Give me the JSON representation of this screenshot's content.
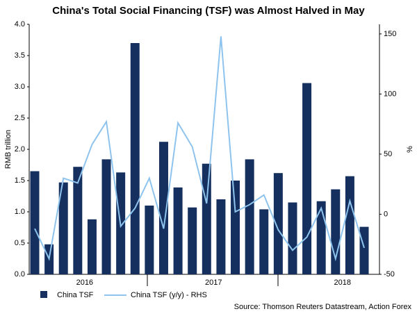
{
  "chart_data": {
    "type": "bar",
    "title": "China's Total Social Financing (TSF) was Almost Halved in May",
    "y_label": "RMB trillion",
    "y2_label": "%",
    "source": "Source: Thomson Reuters Datastream, Action Forex",
    "categories": [
      null,
      null,
      null,
      "2016",
      null,
      null,
      null,
      null,
      null,
      null,
      null,
      null,
      "2017",
      null,
      null,
      null,
      null,
      null,
      null,
      null,
      null,
      "2018",
      null,
      null
    ],
    "series": [
      {
        "name": "China TSF",
        "type": "bar",
        "color": "#15305e",
        "values": [
          1.65,
          0.48,
          1.47,
          1.72,
          0.88,
          1.84,
          1.63,
          3.7,
          1.1,
          2.12,
          1.39,
          1.07,
          1.77,
          1.2,
          1.5,
          1.84,
          1.04,
          1.62,
          1.15,
          3.06,
          1.17,
          1.36,
          1.57,
          0.76
        ]
      },
      {
        "name": "China TSF (y/y) - RHS",
        "type": "line",
        "axis": "y2",
        "color": "#8ec3ee",
        "values": [
          -12,
          -37,
          30,
          26,
          58,
          77,
          -10,
          5,
          30,
          -12,
          76,
          56,
          9,
          148,
          2,
          8,
          16,
          -13,
          -30,
          -19,
          5,
          -37,
          11,
          -28
        ]
      }
    ],
    "ylim": [
      0,
      4
    ],
    "yticks": [
      {
        "value": 0,
        "label": "0.0"
      },
      0.5,
      {
        "value": 1,
        "label": "1.0"
      },
      1.5,
      {
        "value": 2,
        "label": "2.0"
      },
      2.5,
      {
        "value": 3,
        "label": "3.0"
      },
      3.5,
      {
        "value": 4,
        "label": "4.0"
      }
    ],
    "y2lim": [
      -50,
      158
    ],
    "y2ticks": [
      -50,
      0,
      50,
      100,
      150
    ],
    "grid": false
  }
}
